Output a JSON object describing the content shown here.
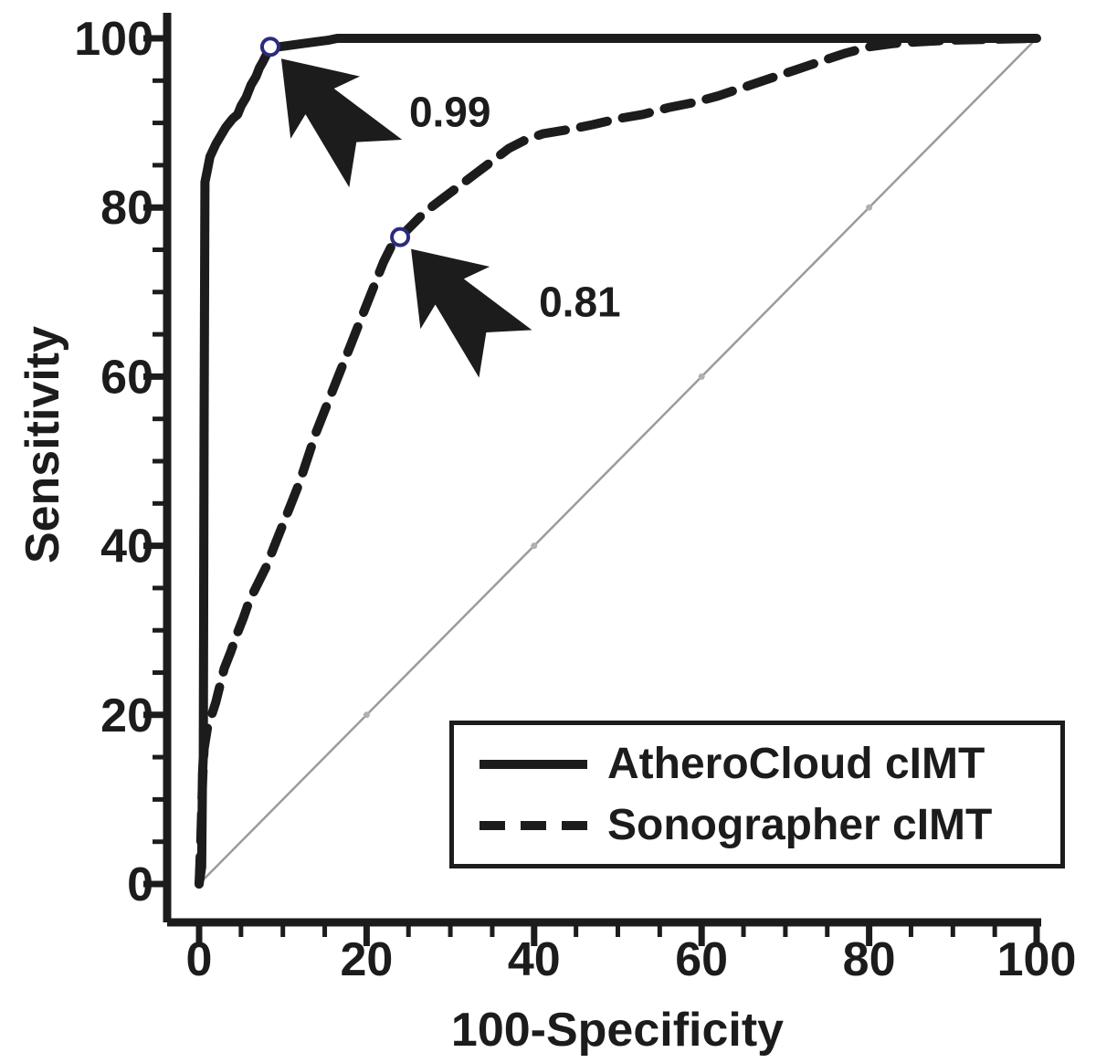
{
  "figure": {
    "background": "#ffffff"
  },
  "colors": {
    "ink": "#1c1c1c",
    "diagonal": "#9b9b9b",
    "marker_ring": "#2b2b7e",
    "background": "#ffffff"
  },
  "chart_data": {
    "type": "line",
    "subtype": "roc-curve",
    "title": "",
    "xlabel": "100-Specificity",
    "ylabel": "Sensitivity",
    "xlim": [
      0,
      100
    ],
    "ylim": [
      0,
      100
    ],
    "x_ticks": [
      0,
      20,
      40,
      60,
      80,
      100
    ],
    "y_ticks": [
      0,
      20,
      40,
      60,
      80,
      100
    ],
    "minor_tick_step": 5,
    "grid": false,
    "legend_position": "lower-right",
    "series": [
      {
        "id": "atherocloud",
        "name": "AtheroCloud cIMT",
        "line": "solid",
        "color": "#1c1c1c",
        "width": 10,
        "auc_label": "0.99",
        "points": [
          [
            0,
            0
          ],
          [
            0.3,
            2
          ],
          [
            0.4,
            13
          ],
          [
            0.5,
            15
          ],
          [
            0.6,
            55
          ],
          [
            0.7,
            83
          ],
          [
            1,
            84.5
          ],
          [
            1.3,
            86
          ],
          [
            2,
            87.5
          ],
          [
            2.6,
            88.5
          ],
          [
            3.2,
            89.5
          ],
          [
            4,
            90.5
          ],
          [
            4.6,
            91
          ],
          [
            5,
            92
          ],
          [
            5.6,
            93
          ],
          [
            6.2,
            94.5
          ],
          [
            6.8,
            95.5
          ],
          [
            7.2,
            96.5
          ],
          [
            7.6,
            97.2
          ],
          [
            8,
            98
          ],
          [
            8.5,
            99
          ],
          [
            9.5,
            99
          ],
          [
            11,
            99.2
          ],
          [
            12.5,
            99.4
          ],
          [
            14,
            99.6
          ],
          [
            15.5,
            99.8
          ],
          [
            16.5,
            100
          ],
          [
            100,
            100
          ]
        ]
      },
      {
        "id": "sonographer",
        "name": "Sonographer cIMT",
        "line": "dashed",
        "dash": "30 17",
        "color": "#1c1c1c",
        "width": 10,
        "auc_label": "0.81",
        "points": [
          [
            0,
            0
          ],
          [
            0.2,
            5
          ],
          [
            0.4,
            12
          ],
          [
            0.6,
            16
          ],
          [
            1,
            18.5
          ],
          [
            1.5,
            20
          ],
          [
            2,
            21.5
          ],
          [
            2.5,
            23.5
          ],
          [
            3,
            25.5
          ],
          [
            3.8,
            27.5
          ],
          [
            4.5,
            29.5
          ],
          [
            5.3,
            31.5
          ],
          [
            6,
            33.5
          ],
          [
            7,
            35.5
          ],
          [
            8,
            37.5
          ],
          [
            9,
            40
          ],
          [
            10,
            42.5
          ],
          [
            11,
            45
          ],
          [
            12,
            47.5
          ],
          [
            13,
            50.5
          ],
          [
            14,
            53.5
          ],
          [
            15,
            56
          ],
          [
            16,
            58.5
          ],
          [
            17,
            61
          ],
          [
            18,
            63.5
          ],
          [
            19,
            66
          ],
          [
            20,
            68.5
          ],
          [
            21,
            71
          ],
          [
            22,
            73.5
          ],
          [
            23,
            75.5
          ],
          [
            24,
            76.5
          ],
          [
            25.5,
            78
          ],
          [
            27,
            79.5
          ],
          [
            29,
            81
          ],
          [
            31,
            82.5
          ],
          [
            33,
            84
          ],
          [
            35,
            85.5
          ],
          [
            37,
            87
          ],
          [
            39,
            88
          ],
          [
            41,
            88.7
          ],
          [
            44,
            89.2
          ],
          [
            47,
            89.8
          ],
          [
            50,
            90.5
          ],
          [
            53,
            91
          ],
          [
            56,
            91.8
          ],
          [
            59,
            92.4
          ],
          [
            62,
            93.2
          ],
          [
            65,
            94.2
          ],
          [
            68,
            95.2
          ],
          [
            71,
            96.2
          ],
          [
            74,
            97.2
          ],
          [
            77,
            98.2
          ],
          [
            80,
            99
          ],
          [
            83,
            99.4
          ],
          [
            86,
            99.6
          ],
          [
            90,
            99.8
          ],
          [
            95,
            99.9
          ],
          [
            100,
            100
          ]
        ]
      },
      {
        "id": "reference",
        "name": "chance-diagonal",
        "line": "solid",
        "color": "#9b9b9b",
        "width": 2.5,
        "dot_markers": [
          20,
          40,
          60,
          80
        ],
        "points": [
          [
            0,
            0
          ],
          [
            100,
            100
          ]
        ]
      }
    ],
    "annotations": [
      {
        "label": "0.99",
        "point": [
          8.5,
          99
        ],
        "tip_offset": [
          12,
          13
        ],
        "label_offset": [
          152,
          87
        ],
        "arrow_rotation": -42,
        "arrow_scale": 1.5
      },
      {
        "label": "0.81",
        "point": [
          24,
          76.5
        ],
        "tip_offset": [
          12,
          13
        ],
        "label_offset": [
          152,
          87
        ],
        "arrow_rotation": -42,
        "arrow_scale": 1.5
      }
    ]
  },
  "legend": {
    "items": [
      {
        "label": "AtheroCloud cIMT",
        "line": "solid"
      },
      {
        "label": "Sonographer cIMT",
        "line": "dashed"
      }
    ]
  }
}
